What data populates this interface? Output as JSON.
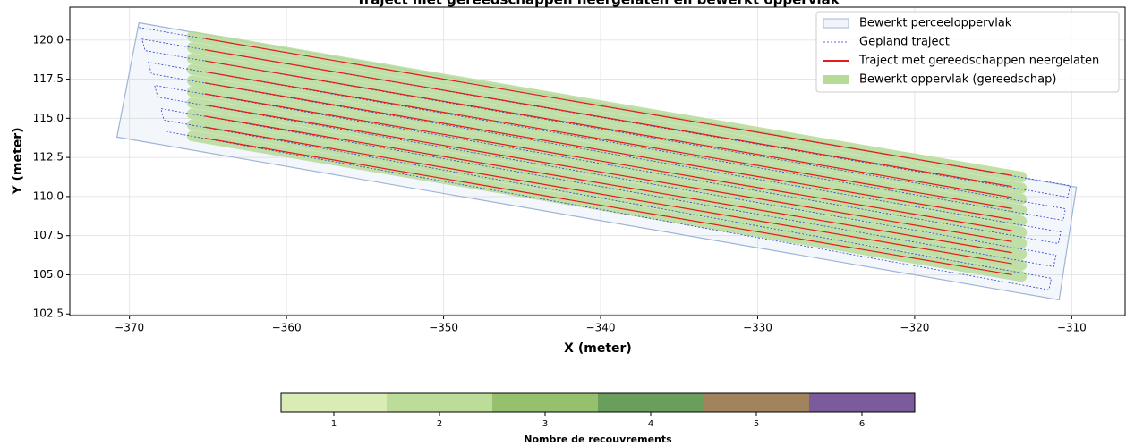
{
  "chart_data": {
    "type": "line",
    "title": "Traject met gereedschappen neergelaten en bewerkt oppervlak",
    "xlabel": "X (meter)",
    "ylabel": "Y (meter)",
    "xlim": [
      -373.8,
      -306.6
    ],
    "ylim": [
      102.4,
      122.1
    ],
    "xticks": [
      {
        "value": -370,
        "label": "−370"
      },
      {
        "value": -360,
        "label": "−360"
      },
      {
        "value": -350,
        "label": "−350"
      },
      {
        "value": -340,
        "label": "−340"
      },
      {
        "value": -330,
        "label": "−330"
      },
      {
        "value": -320,
        "label": "−320"
      },
      {
        "value": -310,
        "label": "−310"
      }
    ],
    "yticks": [
      102.5,
      {
        "value": 105,
        "label": "105.0"
      },
      107.5,
      {
        "value": 110,
        "label": "110.0"
      },
      112.5,
      {
        "value": 115,
        "label": "115.0"
      },
      117.5,
      {
        "value": 120,
        "label": "120.0"
      }
    ],
    "grid": true,
    "legend": "upper right",
    "series": [
      {
        "name": "Bewerkt perceeloppervlak",
        "kind": "polygon",
        "color": "#9fb5d6",
        "x": [
          -369.4,
          -309.7,
          -310.8,
          -370.8
        ],
        "y": [
          121.1,
          110.6,
          103.4,
          113.8
        ]
      },
      {
        "name": "Gepland traject",
        "kind": "path",
        "color": "#2b3fd0",
        "x": [
          -369.4,
          -310.1,
          -310.25,
          -369.2,
          -369.0,
          -310.4,
          -310.55,
          -368.8,
          -368.6,
          -310.7,
          -310.85,
          -368.4,
          -368.2,
          -311.0,
          -311.15,
          -368.0,
          -367.8,
          -311.3,
          -311.45,
          -367.6
        ],
        "y": [
          120.8,
          110.7,
          109.96,
          120.06,
          119.32,
          109.22,
          108.48,
          118.58,
          117.84,
          107.74,
          107.0,
          117.1,
          116.36,
          106.26,
          105.52,
          115.62,
          114.88,
          104.78,
          104.04,
          114.14
        ]
      },
      {
        "name": "Traject met gereedschappen neergelaten",
        "kind": "segments",
        "color": "#e8191c",
        "segments": [
          {
            "x": [
              -365.2,
              -313.8
            ],
            "y": [
              120.09,
              111.35
            ]
          },
          {
            "x": [
              -365.2,
              -313.8
            ],
            "y": [
              119.38,
              110.64
            ]
          },
          {
            "x": [
              -365.2,
              -313.8
            ],
            "y": [
              118.67,
              109.94
            ]
          },
          {
            "x": [
              -365.2,
              -313.8
            ],
            "y": [
              117.97,
              109.23
            ]
          },
          {
            "x": [
              -365.2,
              -313.8
            ],
            "y": [
              117.26,
              108.53
            ]
          },
          {
            "x": [
              -365.2,
              -313.8
            ],
            "y": [
              116.56,
              107.82
            ]
          },
          {
            "x": [
              -365.2,
              -313.8
            ],
            "y": [
              115.85,
              107.12
            ]
          },
          {
            "x": [
              -365.2,
              -313.8
            ],
            "y": [
              115.14,
              106.41
            ]
          },
          {
            "x": [
              -365.2,
              -313.8
            ],
            "y": [
              114.44,
              105.71
            ]
          },
          {
            "x": [
              -365.2,
              -313.8
            ],
            "y": [
              113.73,
              105.0
            ]
          }
        ]
      },
      {
        "name": "Bewerkt oppervlak (gereedschap)",
        "kind": "band",
        "color": "#b5db96",
        "segments": [
          {
            "x": [
              -366.0,
              -313.2
            ],
            "y": [
              120.23,
              111.25
            ]
          },
          {
            "x": [
              -366.0,
              -313.2
            ],
            "y": [
              119.52,
              110.54
            ]
          },
          {
            "x": [
              -366.0,
              -313.2
            ],
            "y": [
              118.81,
              109.84
            ]
          },
          {
            "x": [
              -366.0,
              -313.2
            ],
            "y": [
              118.11,
              109.13
            ]
          },
          {
            "x": [
              -366.0,
              -313.2
            ],
            "y": [
              117.4,
              108.43
            ]
          },
          {
            "x": [
              -366.0,
              -313.2
            ],
            "y": [
              116.7,
              107.72
            ]
          },
          {
            "x": [
              -366.0,
              -313.2
            ],
            "y": [
              115.99,
              107.02
            ]
          },
          {
            "x": [
              -366.0,
              -313.2
            ],
            "y": [
              115.28,
              106.31
            ]
          },
          {
            "x": [
              -366.0,
              -313.2
            ],
            "y": [
              114.58,
              105.61
            ]
          },
          {
            "x": [
              -366.0,
              -313.2
            ],
            "y": [
              113.87,
              104.9
            ]
          }
        ]
      }
    ],
    "colorbar": {
      "label": "Nombre de recouvrements",
      "clim": [
        0.5,
        6.5
      ],
      "ticks": [
        1,
        2,
        3,
        4,
        5,
        6
      ],
      "colors": [
        "#d9ecb5",
        "#bcdc9a",
        "#95c06e",
        "#6a9e5d",
        "#a1845e",
        "#7b5b9c"
      ]
    }
  }
}
